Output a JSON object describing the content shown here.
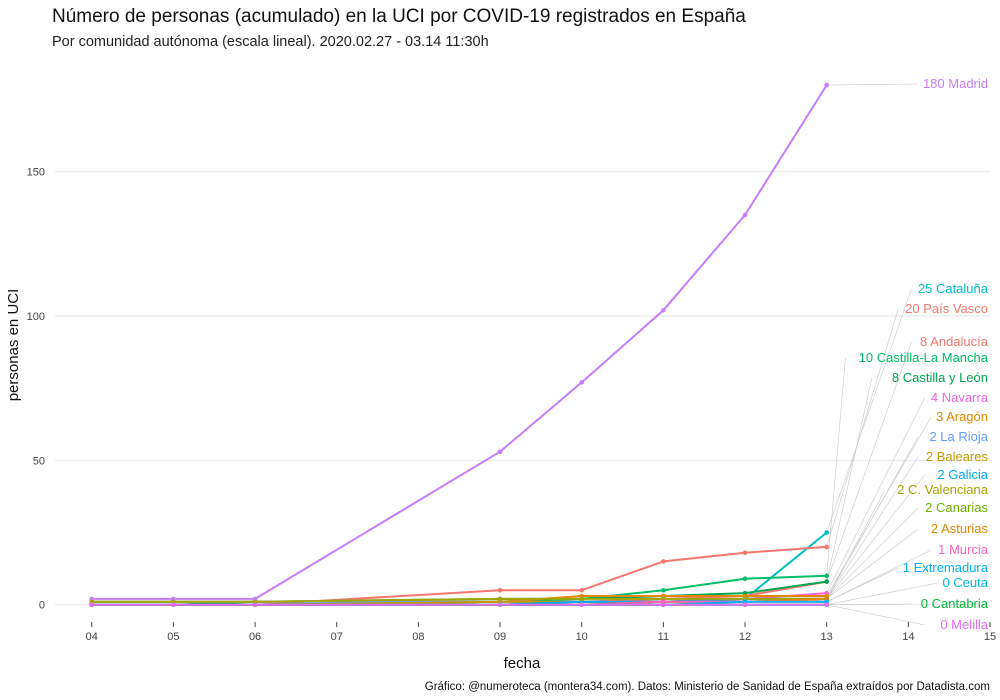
{
  "title": "Número de personas (acumulado) en la UCI por COVID-19 registrados en España",
  "subtitle": "Por comunidad autónoma (escala lineal). 2020.02.27 - 03.14 11:30h",
  "caption": "Gráfico: @numeroteca (montera34.com). Datos: Ministerio de Sanidad de España extraídos por Datadista.com",
  "chart_data": {
    "type": "line",
    "xlabel": "fecha",
    "ylabel": "personas en UCI",
    "x_ticks": [
      "04",
      "05",
      "06",
      "07",
      "08",
      "09",
      "10",
      "11",
      "12",
      "13",
      "14",
      "15"
    ],
    "x_tick_values": [
      4,
      5,
      6,
      7,
      8,
      9,
      10,
      11,
      12,
      13,
      14,
      15
    ],
    "xlim": [
      3.55,
      15
    ],
    "y_ticks": [
      0,
      50,
      100,
      150
    ],
    "ylim": [
      -6,
      188
    ],
    "grid": "horizontal",
    "legend": "direct labels at right",
    "series": [
      {
        "name": "Madrid",
        "label": "180 Madrid",
        "color": "#c77cff",
        "x": [
          4,
          5,
          6,
          9,
          10,
          11,
          12,
          13
        ],
        "values": [
          2,
          2,
          2,
          53,
          77,
          102,
          135,
          180
        ]
      },
      {
        "name": "Cataluña",
        "label": "25 Cataluña",
        "color": "#00bfc4",
        "x": [
          4,
          5,
          6,
          9,
          10,
          11,
          12,
          13
        ],
        "values": [
          0,
          0,
          0,
          1,
          1,
          1,
          2,
          25
        ]
      },
      {
        "name": "País Vasco",
        "label": "20 País Vasco",
        "color": "#f8766d",
        "x": [
          4,
          5,
          6,
          9,
          10,
          11,
          12,
          13
        ],
        "values": [
          0,
          0,
          0,
          5,
          5,
          15,
          18,
          20
        ]
      },
      {
        "name": "Andalucía",
        "label": "8 Andalucía",
        "color": "#f8766d",
        "x": [
          4,
          5,
          6,
          9,
          10,
          11,
          12,
          13
        ],
        "values": [
          0,
          0,
          0,
          1,
          1,
          2,
          3,
          8
        ]
      },
      {
        "name": "Castilla-La Mancha",
        "label": "10 Castilla-La Mancha",
        "color": "#00be67",
        "x": [
          4,
          5,
          6,
          9,
          10,
          11,
          12,
          13
        ],
        "values": [
          0,
          0,
          0,
          1,
          2,
          5,
          9,
          10
        ]
      },
      {
        "name": "Castilla y León",
        "label": "8 Castilla y León",
        "color": "#00a651",
        "x": [
          4,
          5,
          6,
          9,
          10,
          11,
          12,
          13
        ],
        "values": [
          0,
          0,
          1,
          2,
          2,
          3,
          4,
          8
        ]
      },
      {
        "name": "Navarra",
        "label": "4 Navarra",
        "color": "#f564e3",
        "x": [
          4,
          5,
          6,
          9,
          10,
          11,
          12,
          13
        ],
        "values": [
          0,
          0,
          0,
          0,
          1,
          1,
          2,
          4
        ]
      },
      {
        "name": "Aragón",
        "label": "3 Aragón",
        "color": "#e58700",
        "x": [
          4,
          5,
          6,
          9,
          10,
          11,
          12,
          13
        ],
        "values": [
          1,
          1,
          1,
          1,
          3,
          3,
          3,
          3
        ]
      },
      {
        "name": "La Rioja",
        "label": "2 La Rioja",
        "color": "#619cff",
        "x": [
          4,
          5,
          6,
          9,
          10,
          11,
          12,
          13
        ],
        "values": [
          1,
          1,
          1,
          1,
          1,
          1,
          2,
          2
        ]
      },
      {
        "name": "Baleares",
        "label": "2 Baleares",
        "color": "#c99800",
        "x": [
          4,
          5,
          6,
          9,
          10,
          11,
          12,
          13
        ],
        "values": [
          0,
          0,
          0,
          1,
          1,
          1,
          2,
          2
        ]
      },
      {
        "name": "Galicia",
        "label": "2 Galicia",
        "color": "#00a9ff",
        "x": [
          4,
          5,
          6,
          9,
          10,
          11,
          12,
          13
        ],
        "values": [
          0,
          0,
          0,
          0,
          1,
          1,
          2,
          2
        ]
      },
      {
        "name": "C. Valenciana",
        "label": "2 C. Valenciana",
        "color": "#a3a500",
        "x": [
          4,
          5,
          6,
          9,
          10,
          11,
          12,
          13
        ],
        "values": [
          1,
          1,
          1,
          2,
          2,
          2,
          2,
          2
        ]
      },
      {
        "name": "Canarias",
        "label": "2 Canarias",
        "color": "#6bb100",
        "x": [
          4,
          5,
          6,
          9,
          10,
          11,
          12,
          13
        ],
        "values": [
          0,
          0,
          0,
          0,
          0,
          1,
          1,
          2
        ]
      },
      {
        "name": "Asturias",
        "label": "2 Asturias",
        "color": "#e58700",
        "x": [
          4,
          5,
          6,
          9,
          10,
          11,
          12,
          13
        ],
        "values": [
          0,
          0,
          0,
          0,
          0,
          1,
          1,
          2
        ]
      },
      {
        "name": "Murcia",
        "label": "1 Murcia",
        "color": "#ff62bc",
        "x": [
          4,
          5,
          6,
          9,
          10,
          11,
          12,
          13
        ],
        "values": [
          0,
          0,
          0,
          0,
          0,
          1,
          1,
          1
        ]
      },
      {
        "name": "Extremadura",
        "label": "1 Extremadura",
        "color": "#00b0f6",
        "x": [
          4,
          5,
          6,
          9,
          10,
          11,
          12,
          13
        ],
        "values": [
          0,
          0,
          0,
          0,
          0,
          0,
          1,
          1
        ]
      },
      {
        "name": "Ceuta",
        "label": "0 Ceuta",
        "color": "#00bcd8",
        "x": [
          4,
          5,
          6,
          9,
          10,
          11,
          12,
          13
        ],
        "values": [
          0,
          0,
          0,
          0,
          0,
          0,
          0,
          0
        ]
      },
      {
        "name": "Cantabria",
        "label": "0 Cantabria",
        "color": "#00ba38",
        "x": [
          4,
          5,
          6,
          9,
          10,
          11,
          12,
          13
        ],
        "values": [
          0,
          0,
          0,
          0,
          0,
          0,
          0,
          0
        ]
      },
      {
        "name": "Melilla",
        "label": "0 Melilla",
        "color": "#e76bf3",
        "x": [
          4,
          5,
          6,
          9,
          10,
          11,
          12,
          13
        ],
        "values": [
          0,
          0,
          0,
          0,
          0,
          0,
          0,
          0
        ]
      }
    ]
  }
}
